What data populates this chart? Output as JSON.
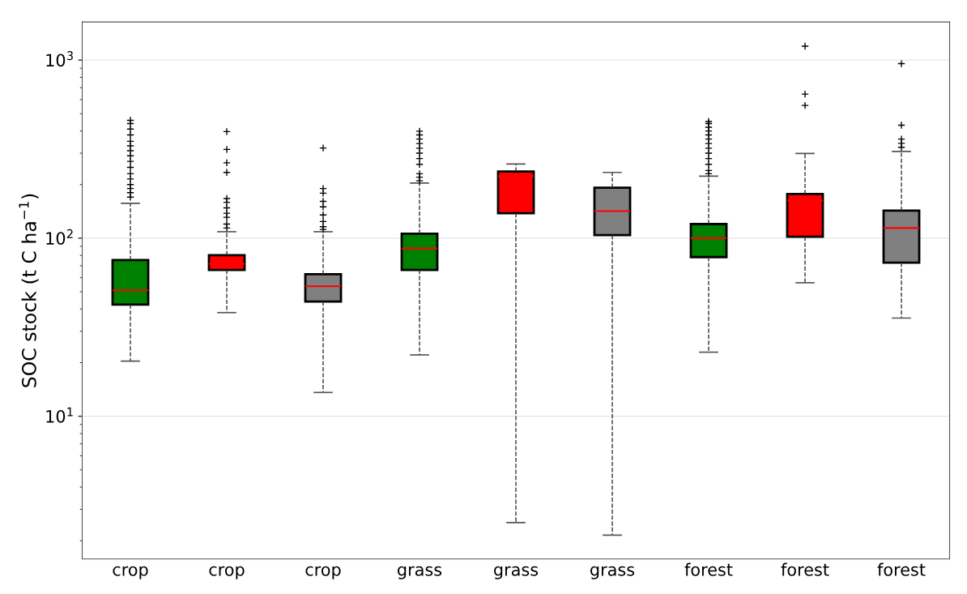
{
  "chart_data": {
    "type": "box",
    "ylabel": "SOC stock (t C ha$^{−1}$)",
    "categories": [
      "crop",
      "crop",
      "crop",
      "grass",
      "grass",
      "grass",
      "forest",
      "forest",
      "forest"
    ],
    "colors": [
      "#008000",
      "#ff0000",
      "#808080",
      "#008000",
      "#ff0000",
      "#808080",
      "#008000",
      "#ff0000",
      "#808080"
    ],
    "boxes": [
      {
        "low": 20.4,
        "q1": 42.4,
        "median": 51,
        "q3": 75.3,
        "high": 157,
        "outliers": [
          170,
          180,
          190,
          200,
          215,
          230,
          250,
          270,
          290,
          310,
          330,
          350,
          380,
          410,
          440,
          459
        ]
      },
      {
        "low": 38.2,
        "q1": 66.3,
        "median": 71.8,
        "q3": 80.3,
        "high": 108.7,
        "outliers": [
          114,
          120,
          131,
          138,
          148,
          159,
          167,
          234,
          265,
          315,
          397
        ]
      },
      {
        "low": 13.6,
        "q1": 44.1,
        "median": 53.7,
        "q3": 62.7,
        "high": 108.7,
        "outliers": [
          112,
          116,
          124,
          135,
          150,
          161,
          179,
          190,
          321
        ]
      },
      {
        "low": 22.1,
        "q1": 66.3,
        "median": 87.5,
        "q3": 106,
        "high": 204,
        "outliers": [
          210,
          220,
          230,
          260,
          280,
          300,
          320,
          340,
          360,
          380,
          399
        ]
      },
      {
        "low": 2.53,
        "q1": 138,
        "median": 223,
        "q3": 237,
        "high": 261
      },
      {
        "low": 2.15,
        "q1": 104,
        "median": 142,
        "q3": 192,
        "high": 234
      },
      {
        "low": 22.9,
        "q1": 78.3,
        "median": 100,
        "q3": 120,
        "high": 223,
        "outliers": [
          230,
          240,
          260,
          280,
          300,
          320,
          340,
          360,
          380,
          400,
          420,
          440,
          452
        ]
      },
      {
        "low": 56.2,
        "q1": 102,
        "median": 163,
        "q3": 177,
        "high": 299,
        "outliers": [
          556,
          644,
          1197
        ]
      },
      {
        "low": 35.6,
        "q1": 72.8,
        "median": 114,
        "q3": 143,
        "high": 307,
        "outliers": [
          324,
          341,
          360,
          431,
          955
        ]
      }
    ],
    "log": "y",
    "ylim": [
      1.58,
      1637
    ],
    "yticks": [
      {
        "value": 10,
        "label": "10$^{1}$"
      },
      {
        "value": 100,
        "label": "10$^{2}$"
      },
      {
        "value": 1000,
        "label": "10$^{3}$"
      }
    ],
    "grid": "y"
  }
}
